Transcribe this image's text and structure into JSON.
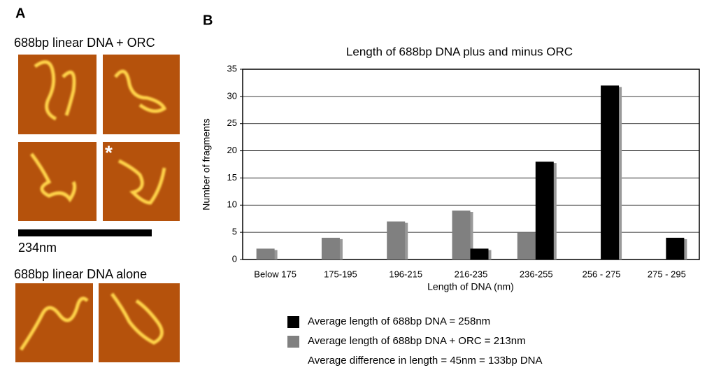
{
  "panel_a": {
    "label": "A",
    "plus_title": "688bp linear DNA + ORC",
    "marker": "*",
    "scale": "234nm",
    "alone_title": "688bp linear DNA alone"
  },
  "panel_b_label": "B",
  "chart_data": {
    "type": "bar",
    "title": "Length of 688bp DNA plus and minus ORC",
    "x_label": "Length of DNA (nm)",
    "y_label": "Number of fragments",
    "categories": [
      "Below 175",
      "175-195",
      "196-215",
      "216-235",
      "236-255",
      "256 - 275",
      "275 - 295"
    ],
    "series": [
      {
        "name": "Average length of 688bp DNA = 258nm",
        "color": "#000000",
        "values": [
          0,
          0,
          0,
          2,
          18,
          32,
          4
        ]
      },
      {
        "name": "Average length of 688bp DNA + ORC = 213nm",
        "color": "#808080",
        "values": [
          2,
          4,
          7,
          9,
          5,
          0,
          0
        ]
      }
    ],
    "annotation": "Average difference in length = 45nm = 133bp DNA",
    "ylim": [
      0,
      35
    ],
    "yticks": [
      0,
      5,
      10,
      15,
      20,
      25,
      30,
      35
    ],
    "grid": true
  }
}
